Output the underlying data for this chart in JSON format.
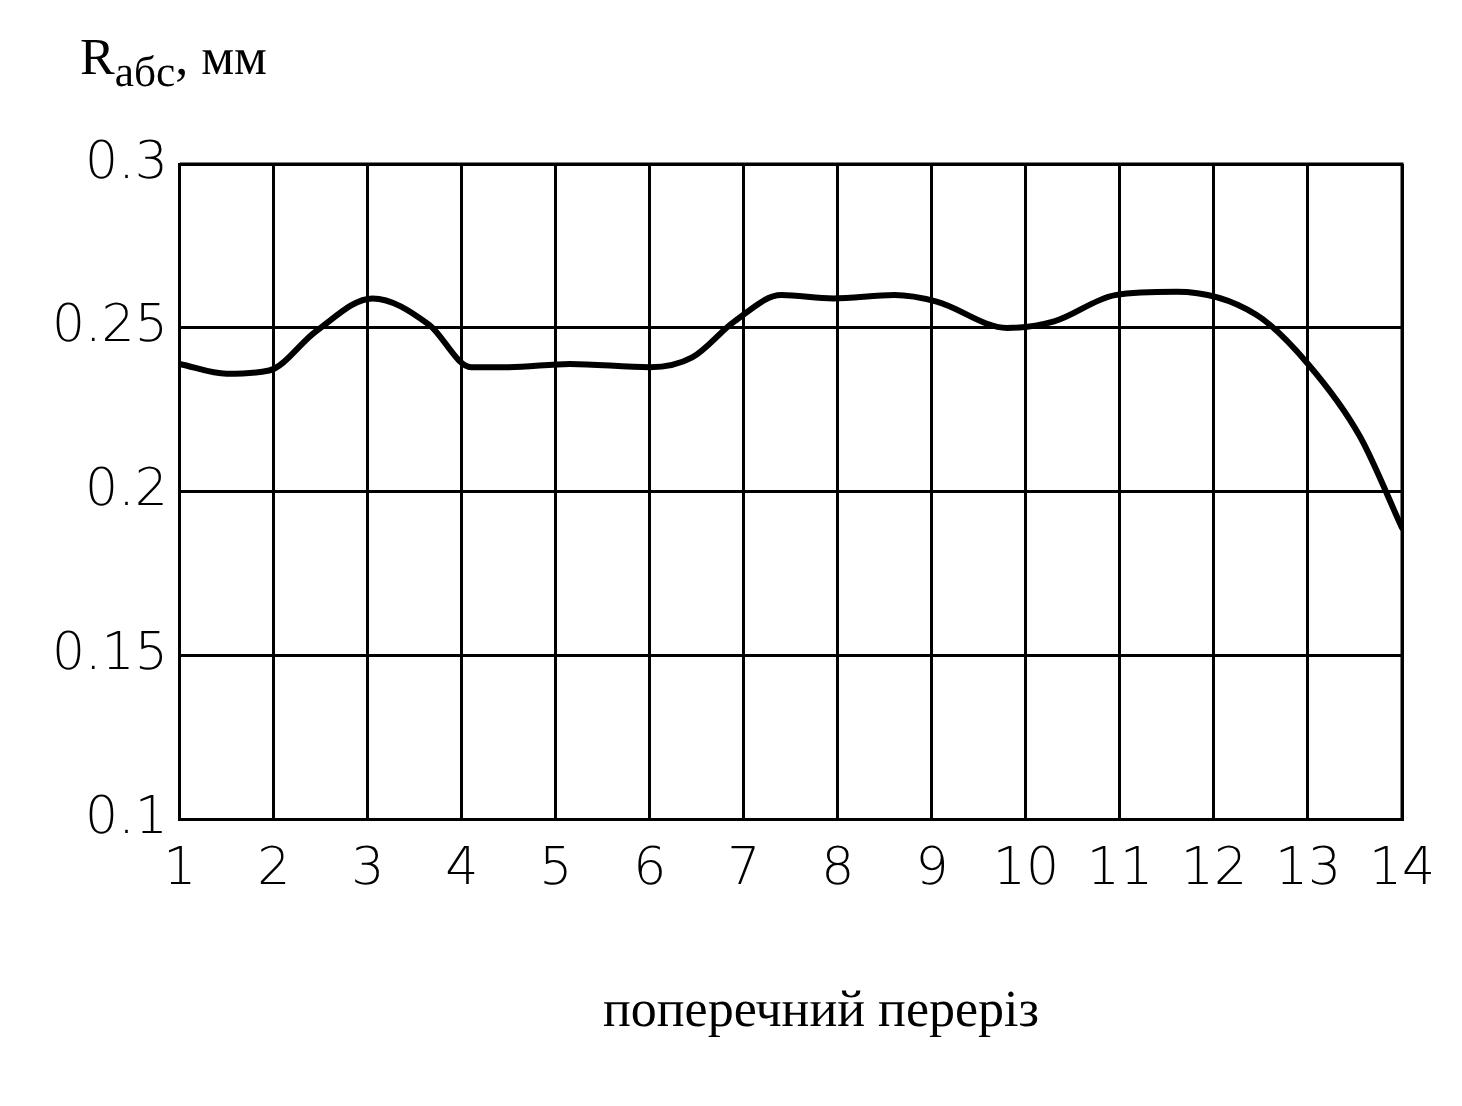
{
  "chart_data": {
    "type": "line",
    "ylabel": "R$_{абс}$, мм",
    "xlabel": "поперечний переріз",
    "x": [
      1,
      1.5,
      1.95,
      2.45,
      3.05,
      3.65,
      4.1,
      4.5,
      5.15,
      6,
      6.45,
      6.9,
      7.4,
      7.95,
      8.6,
      9.05,
      9.8,
      10.3,
      10.95,
      11.6,
      12.45,
      13,
      13.55,
      14
    ],
    "series": [
      {
        "color": "#000000",
        "values": [
          0.239,
          0.236,
          0.237,
          0.249,
          0.259,
          0.251,
          0.238,
          0.238,
          0.239,
          0.238,
          0.241,
          0.252,
          0.26,
          0.259,
          0.26,
          0.258,
          0.25,
          0.252,
          0.26,
          0.261,
          0.254,
          0.239,
          0.217,
          0.189
        ]
      }
    ],
    "xlim": [
      1,
      14
    ],
    "xticks": [
      1,
      2,
      3,
      4,
      5,
      6,
      7,
      8,
      9,
      10,
      11,
      12,
      13,
      14
    ],
    "ylim": [
      0.1,
      0.3
    ],
    "yticks": [
      0.1,
      0.15,
      0.2,
      0.25,
      0.3
    ],
    "grid": true,
    "legend": false,
    "marker": "none",
    "line_style": "solid"
  }
}
